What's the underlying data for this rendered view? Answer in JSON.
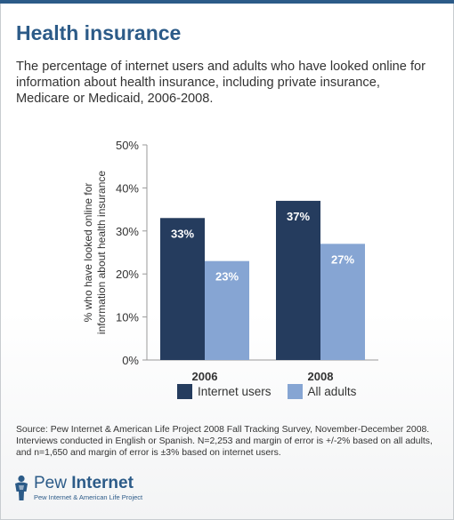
{
  "title": "Health insurance",
  "subtitle": "The percentage of internet users and adults who have looked online for information about health insurance, including private insurance, Medicare or Medicaid, 2006-2008.",
  "source": "Source:  Pew Internet & American Life Project 2008 Fall Tracking Survey, November-December 2008. Interviews conducted in English or Spanish.   N=2,253 and margin of error is +/-2% based on all adults, and n=1,650 and margin of error is ±3% based on internet users.",
  "logo": {
    "name_light": "Pew ",
    "name_bold": "Internet",
    "tagline": "Pew Internet & American Life Project"
  },
  "colors": {
    "brand": "#2c5b88",
    "internet_users": "#253c5e",
    "all_adults": "#86a5d3"
  },
  "chart_data": {
    "type": "bar",
    "categories": [
      "2006",
      "2008"
    ],
    "series": [
      {
        "name": "Internet users",
        "values": [
          33,
          37
        ],
        "labels": [
          "33%",
          "37%"
        ]
      },
      {
        "name": "All adults",
        "values": [
          23,
          27
        ],
        "labels": [
          "23%",
          "27%"
        ]
      }
    ],
    "ylim": [
      0,
      50
    ],
    "yticks": [
      0,
      10,
      20,
      30,
      40,
      50
    ],
    "ytick_labels": [
      "0%",
      "10%",
      "20%",
      "30%",
      "40%",
      "50%"
    ],
    "ylabel_line1": "% who have looked online for",
    "ylabel_line2": "information about health insurance",
    "xlabel": "",
    "grid": false,
    "legend_position": "bottom"
  }
}
